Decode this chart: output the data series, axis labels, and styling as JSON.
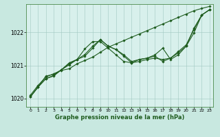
{
  "title": "Graphe pression niveau de la mer (hPa)",
  "fig_bg_color": "#c8e8e0",
  "plot_bg_color": "#d8f0ec",
  "grid_color": "#a0c8c0",
  "line_color": "#1e5c1e",
  "marker": "D",
  "markersize": 1.8,
  "linewidth": 0.8,
  "xlim": [
    -0.5,
    23.5
  ],
  "ylim": [
    1019.75,
    1022.85
  ],
  "xticks": [
    0,
    1,
    2,
    3,
    4,
    5,
    6,
    7,
    8,
    9,
    10,
    11,
    12,
    13,
    14,
    15,
    16,
    17,
    18,
    19,
    20,
    21,
    22,
    23
  ],
  "yticks": [
    1020,
    1021,
    1022
  ],
  "series": [
    [
      1020.1,
      1020.4,
      1020.65,
      1020.75,
      1020.85,
      1020.9,
      1021.05,
      1021.15,
      1021.25,
      1021.4,
      1021.55,
      1021.65,
      1021.75,
      1021.85,
      1021.95,
      1022.05,
      1022.15,
      1022.25,
      1022.35,
      1022.45,
      1022.55,
      1022.65,
      1022.72,
      1022.78
    ],
    [
      1020.05,
      1020.35,
      1020.6,
      1020.7,
      1020.87,
      1021.05,
      1021.18,
      1021.5,
      1021.72,
      1021.72,
      1021.52,
      1021.32,
      1021.12,
      1021.08,
      1021.18,
      1021.22,
      1021.28,
      1021.12,
      1021.22,
      1021.38,
      1021.58,
      1021.98,
      1022.52,
      1022.68
    ],
    [
      1020.05,
      1020.35,
      1020.6,
      1020.68,
      1020.87,
      1021.02,
      1021.18,
      1021.28,
      1021.52,
      1021.78,
      1021.58,
      1021.48,
      1021.28,
      1021.08,
      1021.12,
      1021.18,
      1021.22,
      1021.18,
      1021.22,
      1021.42,
      1021.62,
      1022.08,
      1022.52,
      1022.68
    ],
    [
      1020.05,
      1020.35,
      1020.68,
      1020.73,
      1020.87,
      1021.08,
      1021.18,
      1021.33,
      1021.58,
      1021.78,
      1021.58,
      1021.48,
      1021.32,
      1021.12,
      1021.18,
      1021.22,
      1021.32,
      1021.52,
      1021.18,
      1021.32,
      1021.58,
      1022.12,
      1022.52,
      1022.68
    ]
  ]
}
